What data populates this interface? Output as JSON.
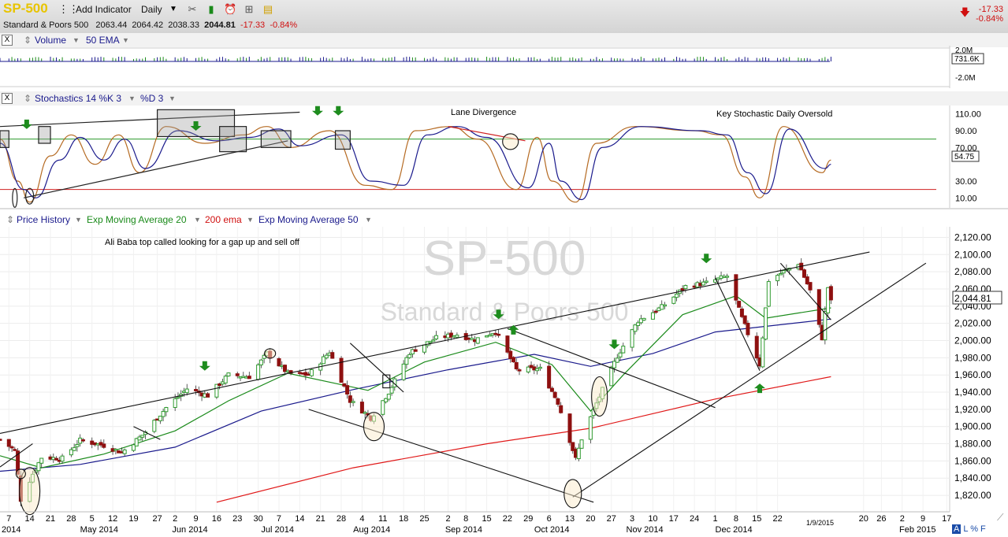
{
  "toolbar": {
    "symbol": "SP-500",
    "add_indicator": "Add Indicator",
    "period": "Daily",
    "name": "Standard & Poors 500",
    "open": "2063.44",
    "high": "2064.42",
    "low": "2038.33",
    "close": "2044.81",
    "change": "-17.33",
    "change_pct": "-0.84%"
  },
  "volume_panel": {
    "close_label": "X",
    "label": "Volume",
    "ema_label": "50 EMA",
    "scale_top": "2.0M",
    "scale_value": "731.6K",
    "scale_bottom": "-2.0M"
  },
  "stoch_panel": {
    "close_label": "X",
    "label": "Stochastics 14 %K 3",
    "d_label": "%D 3",
    "ticks": [
      "110.00",
      "90.00",
      "70.00",
      "30.00",
      "10.00"
    ],
    "value": "54.75",
    "annot_lane": "Lane Divergence",
    "annot_key": "Key Stochastic Daily Oversold"
  },
  "price_panel": {
    "label": "Price History",
    "ema20": "Exp Moving Average 20",
    "ema200": "200 ema",
    "ema50": "Exp Moving Average 50",
    "watermark_symbol": "SP-500",
    "watermark_name": "Standard & Poors 500",
    "annotation": "Ali Baba top called looking for a gap up and sell off",
    "last_price": "2,044.81"
  },
  "footer": {
    "date": "1/9/2015",
    "toggles": [
      "A",
      "L",
      "%",
      "F"
    ]
  },
  "chart_data": {
    "type": "candlestick",
    "title": "SP-500",
    "subtitle": "Standard & Poors 500",
    "ylim": [
      1810,
      2125
    ],
    "y_ticks": [
      1820,
      1840,
      1860,
      1880,
      1900,
      1920,
      1940,
      1960,
      1980,
      2000,
      2020,
      2040,
      2060,
      2080,
      2100,
      2120
    ],
    "y_tick_labels": [
      "1,820.00",
      "1,840.00",
      "1,860.00",
      "1,880.00",
      "1,900.00",
      "1,920.00",
      "1,940.00",
      "1,960.00",
      "1,980.00",
      "2,000.00",
      "2,020.00",
      "2,040.00",
      "2,060.00",
      "2,080.00",
      "2,100.00",
      "2,120.00"
    ],
    "x_range": [
      "2014-04-04",
      "2015-02-18"
    ],
    "x_ticks": [
      {
        "date": "2014-04-07",
        "label": "7"
      },
      {
        "date": "2014-04-14",
        "label": "14"
      },
      {
        "date": "2014-04-21",
        "label": "21"
      },
      {
        "date": "2014-04-28",
        "label": "28"
      },
      {
        "date": "2014-05-05",
        "label": "5"
      },
      {
        "date": "2014-05-12",
        "label": "12"
      },
      {
        "date": "2014-05-19",
        "label": "19"
      },
      {
        "date": "2014-05-27",
        "label": "27"
      },
      {
        "date": "2014-06-02",
        "label": "2"
      },
      {
        "date": "2014-06-09",
        "label": "9"
      },
      {
        "date": "2014-06-16",
        "label": "16"
      },
      {
        "date": "2014-06-23",
        "label": "23"
      },
      {
        "date": "2014-06-30",
        "label": "30"
      },
      {
        "date": "2014-07-07",
        "label": "7"
      },
      {
        "date": "2014-07-14",
        "label": "14"
      },
      {
        "date": "2014-07-21",
        "label": "21"
      },
      {
        "date": "2014-07-28",
        "label": "28"
      },
      {
        "date": "2014-08-04",
        "label": "4"
      },
      {
        "date": "2014-08-11",
        "label": "11"
      },
      {
        "date": "2014-08-18",
        "label": "18"
      },
      {
        "date": "2014-08-25",
        "label": "25"
      },
      {
        "date": "2014-09-02",
        "label": "2"
      },
      {
        "date": "2014-09-08",
        "label": "8"
      },
      {
        "date": "2014-09-15",
        "label": "15"
      },
      {
        "date": "2014-09-22",
        "label": "22"
      },
      {
        "date": "2014-09-29",
        "label": "29"
      },
      {
        "date": "2014-10-06",
        "label": "6"
      },
      {
        "date": "2014-10-13",
        "label": "13"
      },
      {
        "date": "2014-10-20",
        "label": "20"
      },
      {
        "date": "2014-10-27",
        "label": "27"
      },
      {
        "date": "2014-11-03",
        "label": "3"
      },
      {
        "date": "2014-11-10",
        "label": "10"
      },
      {
        "date": "2014-11-17",
        "label": "17"
      },
      {
        "date": "2014-11-24",
        "label": "24"
      },
      {
        "date": "2014-12-01",
        "label": "1"
      },
      {
        "date": "2014-12-08",
        "label": "8"
      },
      {
        "date": "2014-12-15",
        "label": "15"
      },
      {
        "date": "2014-12-22",
        "label": "22"
      },
      {
        "date": "2015-01-20",
        "label": "20"
      },
      {
        "date": "2015-01-26",
        "label": "26"
      },
      {
        "date": "2015-02-02",
        "label": "2"
      },
      {
        "date": "2015-02-09",
        "label": "9"
      },
      {
        "date": "2015-02-17",
        "label": "17"
      }
    ],
    "month_labels": [
      {
        "date": "2014-04-01",
        "label": "2014"
      },
      {
        "date": "2014-05-01",
        "label": "May 2014"
      },
      {
        "date": "2014-06-01",
        "label": "Jun 2014"
      },
      {
        "date": "2014-07-01",
        "label": "Jul 2014"
      },
      {
        "date": "2014-08-01",
        "label": "Aug 2014"
      },
      {
        "date": "2014-09-01",
        "label": "Sep 2014"
      },
      {
        "date": "2014-10-01",
        "label": "Oct 2014"
      },
      {
        "date": "2014-11-01",
        "label": "Nov 2014"
      },
      {
        "date": "2014-12-01",
        "label": "Dec 2014"
      },
      {
        "date": "2015-02-01",
        "label": "Feb 2015"
      }
    ],
    "close_series": [
      [
        "2014-04-04",
        1885
      ],
      [
        "2014-04-09",
        1872
      ],
      [
        "2014-04-11",
        1815
      ],
      [
        "2014-04-15",
        1845
      ],
      [
        "2014-04-18",
        1864
      ],
      [
        "2014-04-25",
        1863
      ],
      [
        "2014-05-01",
        1884
      ],
      [
        "2014-05-09",
        1878
      ],
      [
        "2014-05-15",
        1870
      ],
      [
        "2014-05-22",
        1890
      ],
      [
        "2014-05-30",
        1922
      ],
      [
        "2014-06-06",
        1944
      ],
      [
        "2014-06-13",
        1936
      ],
      [
        "2014-06-20",
        1960
      ],
      [
        "2014-06-27",
        1958
      ],
      [
        "2014-07-03",
        1985
      ],
      [
        "2014-07-10",
        1962
      ],
      [
        "2014-07-17",
        1960
      ],
      [
        "2014-07-24",
        1987
      ],
      [
        "2014-07-31",
        1930
      ],
      [
        "2014-08-07",
        1910
      ],
      [
        "2014-08-13",
        1940
      ],
      [
        "2014-08-20",
        1986
      ],
      [
        "2014-08-29",
        2003
      ],
      [
        "2014-09-05",
        2007
      ],
      [
        "2014-09-11",
        2001
      ],
      [
        "2014-09-18",
        2011
      ],
      [
        "2014-09-25",
        1966
      ],
      [
        "2014-10-03",
        1967
      ],
      [
        "2014-10-09",
        1928
      ],
      [
        "2014-10-15",
        1862
      ],
      [
        "2014-10-17",
        1886
      ],
      [
        "2014-10-22",
        1927
      ],
      [
        "2014-10-29",
        1982
      ],
      [
        "2014-11-05",
        2023
      ],
      [
        "2014-11-13",
        2039
      ],
      [
        "2014-11-21",
        2063
      ],
      [
        "2014-11-28",
        2067
      ],
      [
        "2014-12-05",
        2075
      ],
      [
        "2014-12-10",
        2026
      ],
      [
        "2014-12-16",
        1972
      ],
      [
        "2014-12-19",
        2070
      ],
      [
        "2014-12-29",
        2090
      ],
      [
        "2015-01-02",
        2058
      ],
      [
        "2015-01-06",
        2003
      ],
      [
        "2015-01-08",
        2062
      ],
      [
        "2015-01-09",
        2045
      ]
    ],
    "ema20_series": [
      [
        "2014-04-04",
        1866
      ],
      [
        "2014-04-18",
        1852
      ],
      [
        "2014-05-09",
        1868
      ],
      [
        "2014-06-02",
        1895
      ],
      [
        "2014-06-20",
        1930
      ],
      [
        "2014-07-10",
        1962
      ],
      [
        "2014-08-06",
        1942
      ],
      [
        "2014-08-25",
        1975
      ],
      [
        "2014-09-18",
        1998
      ],
      [
        "2014-10-07",
        1972
      ],
      [
        "2014-10-20",
        1918
      ],
      [
        "2014-10-31",
        1960
      ],
      [
        "2014-11-20",
        2030
      ],
      [
        "2014-12-08",
        2052
      ],
      [
        "2014-12-18",
        2026
      ],
      [
        "2015-01-09",
        2038
      ]
    ],
    "ema50_series": [
      [
        "2014-04-04",
        1848
      ],
      [
        "2014-05-01",
        1856
      ],
      [
        "2014-06-02",
        1876
      ],
      [
        "2014-07-01",
        1918
      ],
      [
        "2014-08-01",
        1943
      ],
      [
        "2014-09-02",
        1966
      ],
      [
        "2014-10-01",
        1984
      ],
      [
        "2014-10-20",
        1970
      ],
      [
        "2014-11-10",
        1985
      ],
      [
        "2014-12-01",
        2010
      ],
      [
        "2015-01-09",
        2025
      ]
    ],
    "ema200_series": [
      [
        "2014-06-16",
        1812
      ],
      [
        "2014-08-01",
        1852
      ],
      [
        "2014-09-15",
        1880
      ],
      [
        "2014-10-20",
        1898
      ],
      [
        "2014-12-01",
        1932
      ],
      [
        "2015-01-09",
        1958
      ]
    ],
    "stoch_ylim": [
      0,
      120
    ],
    "stoch_k": [
      [
        "2014-04-04",
        80
      ],
      [
        "2014-04-10",
        30
      ],
      [
        "2014-04-14",
        5
      ],
      [
        "2014-04-21",
        60
      ],
      [
        "2014-04-28",
        85
      ],
      [
        "2014-05-06",
        50
      ],
      [
        "2014-05-14",
        85
      ],
      [
        "2014-05-21",
        40
      ],
      [
        "2014-05-30",
        95
      ],
      [
        "2014-06-12",
        75
      ],
      [
        "2014-06-25",
        85
      ],
      [
        "2014-07-03",
        95
      ],
      [
        "2014-07-11",
        70
      ],
      [
        "2014-07-24",
        90
      ],
      [
        "2014-08-05",
        25
      ],
      [
        "2014-08-14",
        20
      ],
      [
        "2014-08-22",
        90
      ],
      [
        "2014-09-03",
        95
      ],
      [
        "2014-09-12",
        80
      ],
      [
        "2014-09-25",
        20
      ],
      [
        "2014-10-02",
        82
      ],
      [
        "2014-10-07",
        30
      ],
      [
        "2014-10-15",
        5
      ],
      [
        "2014-10-22",
        75
      ],
      [
        "2014-11-04",
        95
      ],
      [
        "2014-11-24",
        90
      ],
      [
        "2014-12-03",
        85
      ],
      [
        "2014-12-11",
        35
      ],
      [
        "2014-12-16",
        10
      ],
      [
        "2014-12-24",
        95
      ],
      [
        "2015-01-06",
        40
      ],
      [
        "2015-01-09",
        55
      ]
    ],
    "stoch_d": [
      [
        "2014-04-04",
        75
      ],
      [
        "2014-04-12",
        20
      ],
      [
        "2014-04-16",
        10
      ],
      [
        "2014-04-24",
        55
      ],
      [
        "2014-05-01",
        82
      ],
      [
        "2014-05-09",
        55
      ],
      [
        "2014-05-16",
        80
      ],
      [
        "2014-05-23",
        45
      ],
      [
        "2014-06-03",
        90
      ],
      [
        "2014-06-16",
        78
      ],
      [
        "2014-06-27",
        82
      ],
      [
        "2014-07-07",
        92
      ],
      [
        "2014-07-14",
        72
      ],
      [
        "2014-07-28",
        85
      ],
      [
        "2014-08-07",
        30
      ],
      [
        "2014-08-18",
        25
      ],
      [
        "2014-08-26",
        85
      ],
      [
        "2014-09-05",
        95
      ],
      [
        "2014-09-15",
        82
      ],
      [
        "2014-09-29",
        22
      ],
      [
        "2014-10-06",
        75
      ],
      [
        "2014-10-10",
        30
      ],
      [
        "2014-10-17",
        8
      ],
      [
        "2014-10-24",
        70
      ],
      [
        "2014-11-06",
        95
      ],
      [
        "2014-11-26",
        90
      ],
      [
        "2014-12-05",
        85
      ],
      [
        "2014-12-12",
        40
      ],
      [
        "2014-12-18",
        15
      ],
      [
        "2014-12-26",
        92
      ],
      [
        "2015-01-07",
        45
      ],
      [
        "2015-01-09",
        50
      ]
    ],
    "stoch_levels": [
      80,
      20
    ],
    "colors": {
      "ema20": "#1a8a1a",
      "ema50": "#1a1a8c",
      "ema200": "#e01818",
      "up": "#2e9a2e",
      "down": "#8e1010",
      "stoch_k": "#b56a22",
      "stoch_d": "#1a1a8c",
      "arrow": "#1e8c1e"
    }
  }
}
